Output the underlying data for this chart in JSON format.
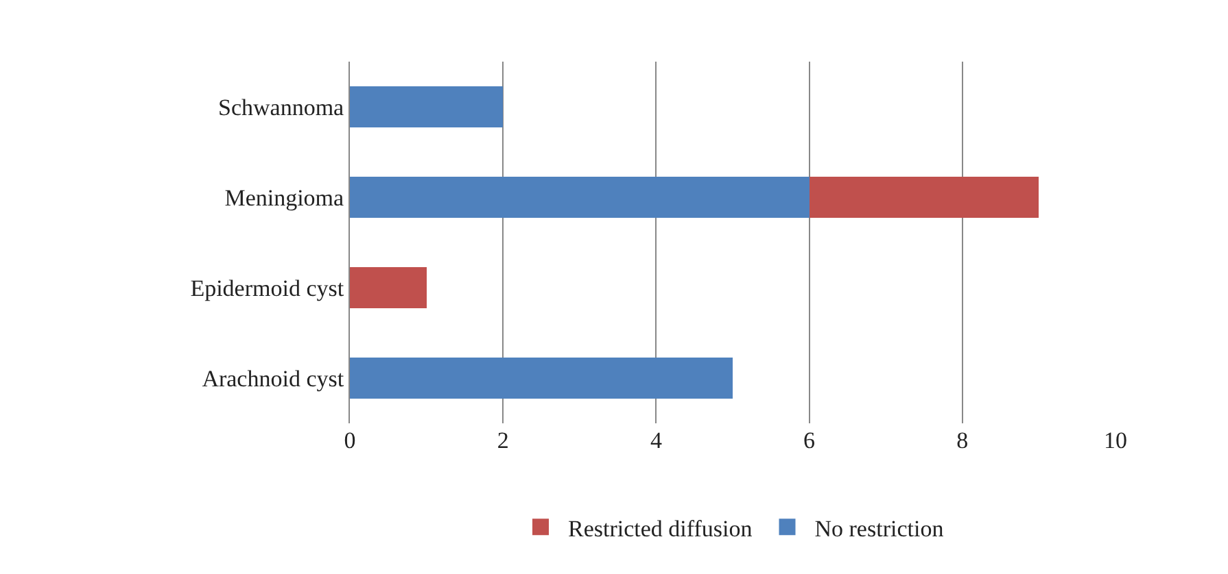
{
  "chart_data": {
    "type": "bar",
    "orientation": "horizontal",
    "stacked": true,
    "categories": [
      "Schwannoma",
      "Meningioma",
      "Epidermoid cyst",
      "Arachnoid cyst"
    ],
    "series": [
      {
        "name": "No restriction",
        "color": "#4f81bd",
        "values": [
          2,
          6,
          0,
          5
        ]
      },
      {
        "name": "Restricted diffusion",
        "color": "#c0504d",
        "values": [
          0,
          3,
          1,
          0
        ]
      }
    ],
    "xlim": [
      0,
      10
    ],
    "xticks": [
      0,
      2,
      4,
      6,
      8,
      10
    ],
    "grid": "x",
    "legend": "bottom"
  }
}
